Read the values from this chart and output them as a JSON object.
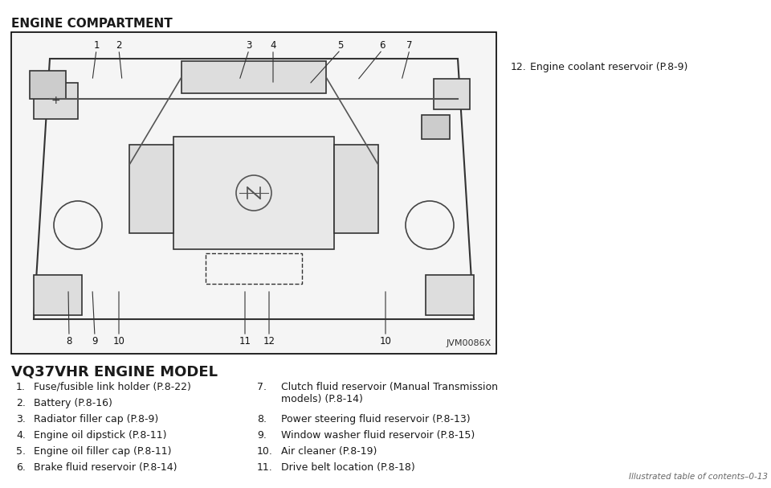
{
  "title": "ENGINE COMPARTMENT",
  "subtitle": "VQ37VHR ENGINE MODEL",
  "watermark": "JVM0086X",
  "bg_color": "#ffffff",
  "box_color": "#000000",
  "text_color": "#1a1a1a",
  "page_note": "Illustrated table of contents–0-13",
  "right_item": "12. Engine coolant reservoir (P.8-9)",
  "left_items": [
    "1.  Fuse/fusible link holder (P.8-22)",
    "2.  Battery (P.8-16)",
    "3.  Radiator filler cap (P.8-9)",
    "4.  Engine oil dipstick (P.8-11)",
    "5.  Engine oil filler cap (P.8-11)",
    "6.  Brake fluid reservoir (P.8-14)"
  ],
  "right_items": [
    "7.  Clutch fluid reservoir (Manual Transmission\n     models) (P.8-14)",
    "8.  Power steering fluid reservoir (P.8-13)",
    "9.  Window washer fluid reservoir (P.8-15)",
    "10. Air cleaner (P.8-19)",
    "11. Drive belt location (P.8-18)"
  ]
}
